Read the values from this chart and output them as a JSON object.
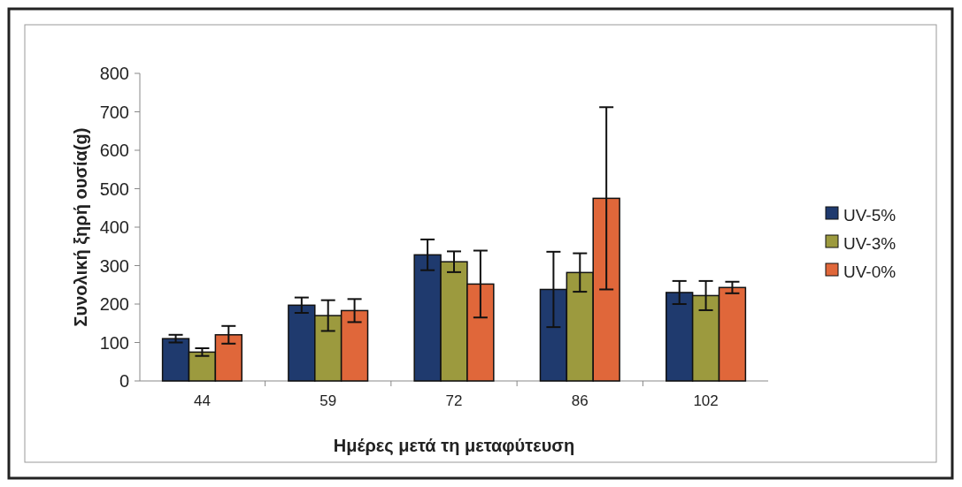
{
  "chart_data": {
    "type": "bar",
    "xlabel": "Ημέρες μετά τη μεταφύτευση",
    "ylabel": "Συνολική ξηρή ουσία(g)",
    "categories": [
      "44",
      "59",
      "72",
      "86",
      "102"
    ],
    "series": [
      {
        "name": "UV-5%",
        "color": "#1f3a6e",
        "values": [
          110,
          197,
          328,
          238,
          230
        ],
        "errors": [
          10,
          20,
          40,
          98,
          30
        ]
      },
      {
        "name": "UV-3%",
        "color": "#9c9a3e",
        "values": [
          75,
          170,
          310,
          282,
          222
        ],
        "errors": [
          10,
          40,
          27,
          50,
          38
        ]
      },
      {
        "name": "UV-0%",
        "color": "#e0673a",
        "values": [
          120,
          183,
          252,
          475,
          243
        ],
        "errors": [
          23,
          30,
          87,
          237,
          15
        ]
      }
    ],
    "ylim": [
      0,
      800
    ],
    "yticks": [
      0,
      100,
      200,
      300,
      400,
      500,
      600,
      700,
      800
    ],
    "grid": false,
    "legend": "right"
  }
}
